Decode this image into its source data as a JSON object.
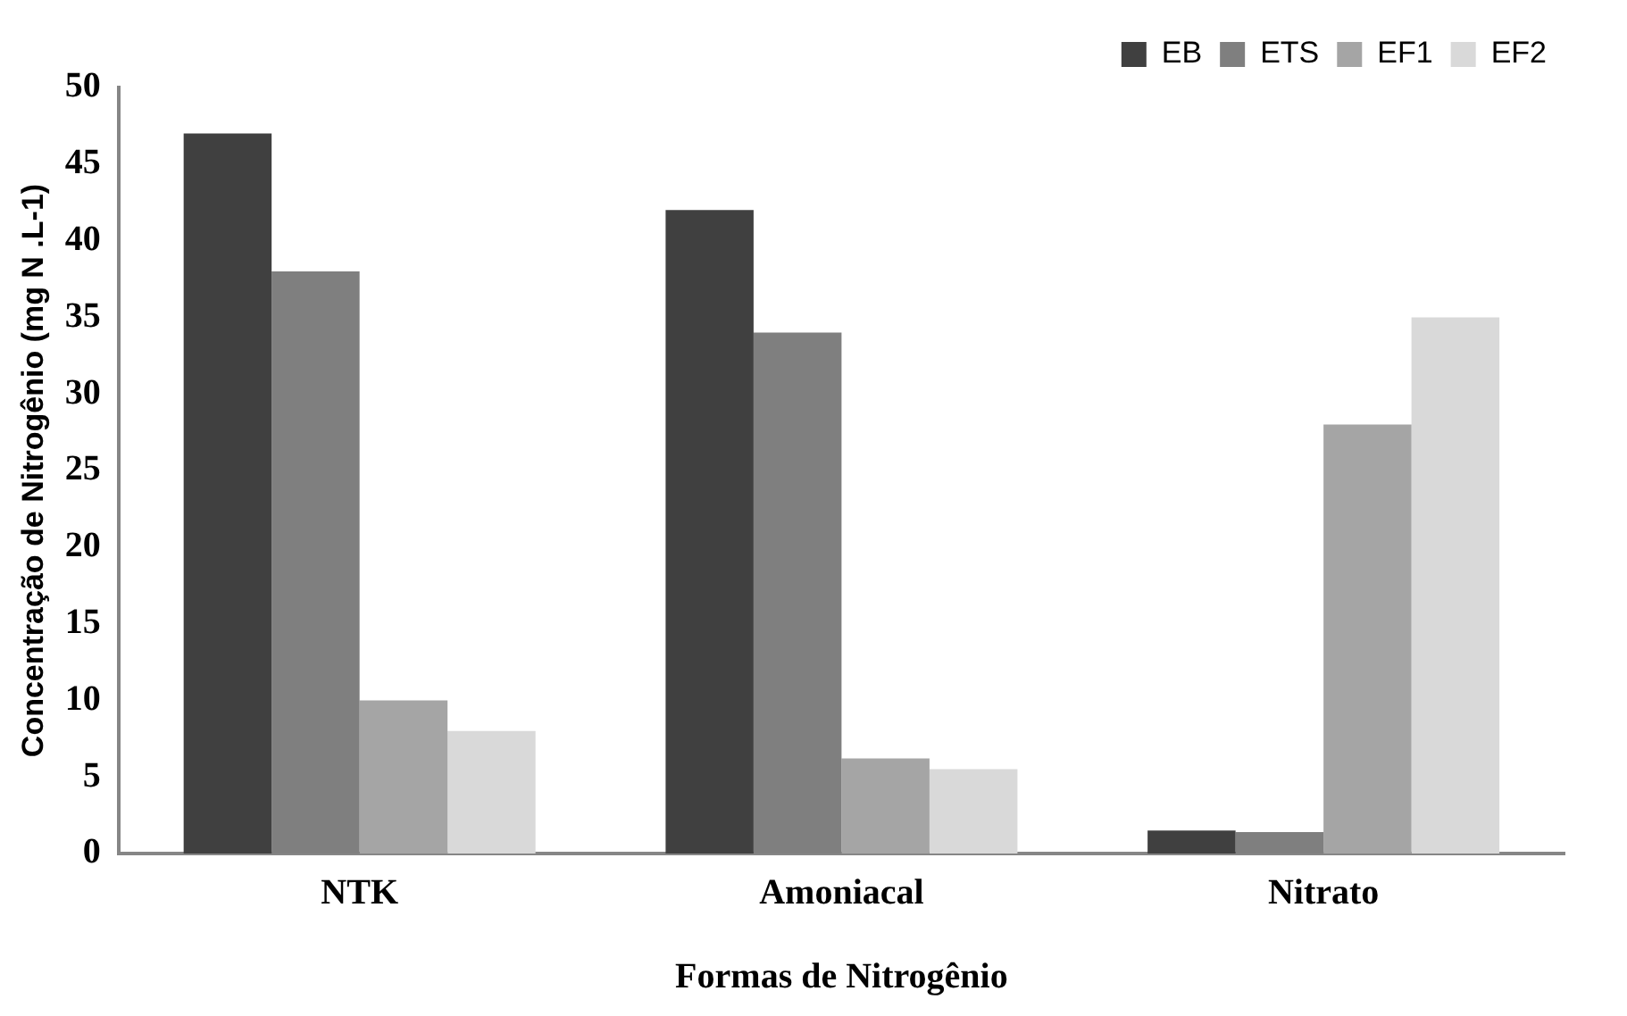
{
  "chart_data": {
    "type": "bar",
    "categories": [
      "NTK",
      "Amoniacal",
      "Nitrato"
    ],
    "series": [
      {
        "name": "EB",
        "color": "#404040",
        "values": [
          47,
          42,
          1.5
        ]
      },
      {
        "name": "ETS",
        "color": "#7f7f7f",
        "values": [
          38,
          34,
          1.4
        ]
      },
      {
        "name": "EF1",
        "color": "#a5a5a5",
        "values": [
          10,
          6.2,
          28
        ]
      },
      {
        "name": "EF2",
        "color": "#d9d9d9",
        "values": [
          8,
          5.5,
          35
        ]
      }
    ],
    "xlabel": "Formas de Nitrogênio",
    "ylabel": "Concentração de Nitrogênio (mg N .L-1)",
    "ylim": [
      0,
      50
    ],
    "yticks": [
      0,
      5,
      10,
      15,
      20,
      25,
      30,
      35,
      40,
      45,
      50
    ],
    "grid": false,
    "legend": "top right"
  }
}
